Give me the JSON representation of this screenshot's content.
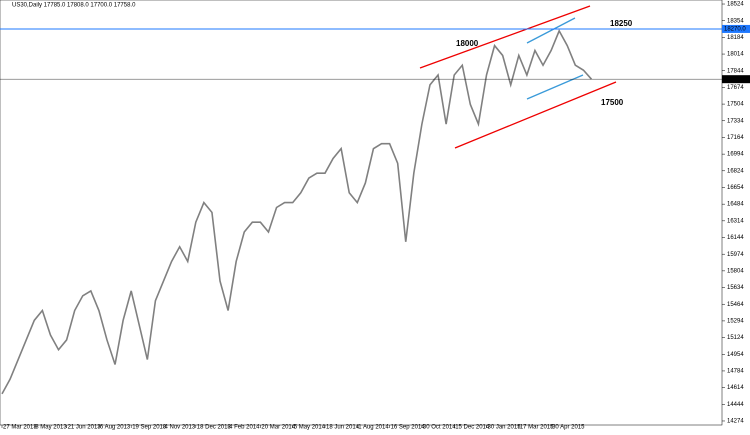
{
  "chart_data": {
    "type": "line",
    "title": "US30,Daily  17785.0 17808.0 17700.0 17758.0",
    "categories": [
      "27 Mar 2013",
      null,
      null,
      null,
      "8 May 2013",
      null,
      null,
      null,
      "21 Jun 2013",
      null,
      null,
      null,
      "6 Aug 2013",
      null,
      null,
      null,
      "19 Sep 2013",
      null,
      null,
      null,
      "4 Nov 2013",
      null,
      null,
      null,
      "18 Dec 2013",
      null,
      null,
      null,
      "4 Feb 2014",
      null,
      null,
      null,
      "20 Mar 2014",
      null,
      null,
      null,
      "5 May 2014",
      null,
      null,
      null,
      "18 Jun 2014",
      null,
      null,
      null,
      "1 Aug 2014",
      null,
      null,
      null,
      "16 Sep 2014",
      null,
      null,
      null,
      "30 Oct 2014",
      null,
      null,
      null,
      "15 Dec 2014",
      null,
      null,
      null,
      "30 Jan 2015",
      null,
      null,
      null,
      "17 Mar 2015",
      null,
      null,
      null,
      "30 Apr 2015",
      null,
      null,
      null,
      null,
      null
    ],
    "series": [
      {
        "name": "US30",
        "color": "#808080",
        "values": [
          14550,
          14700,
          14900,
          15100,
          15300,
          15400,
          15150,
          15000,
          15100,
          15400,
          15550,
          15600,
          15400,
          15100,
          14850,
          15300,
          15600,
          15250,
          14900,
          15500,
          15700,
          15900,
          16050,
          15900,
          16300,
          16500,
          16400,
          15700,
          15400,
          15900,
          16200,
          16300,
          16300,
          16200,
          16450,
          16500,
          16500,
          16600,
          16750,
          16800,
          16800,
          16950,
          17050,
          16600,
          16500,
          16700,
          17050,
          17100,
          17100,
          16900,
          16100,
          16800,
          17300,
          17700,
          17800,
          17300,
          17800,
          17900,
          17500,
          17300,
          17800,
          18100,
          18000,
          17700,
          18000,
          17800,
          18050,
          17900,
          18050,
          18250,
          18100,
          17900,
          17850,
          17758
        ]
      }
    ],
    "ylim": [
      14233,
      18565
    ],
    "yticks": [
      18524,
      18354,
      18184,
      18014,
      17844,
      17674,
      17504,
      17334,
      17164,
      16994,
      16824,
      16654,
      16484,
      16314,
      16144,
      15974,
      15804,
      15634,
      15464,
      15294,
      15124,
      14954,
      14784,
      14614,
      14444,
      14274
    ],
    "levels": [
      {
        "value": 18270,
        "label": "18270.0",
        "color": "#1e78ff"
      },
      {
        "value": 17758,
        "label": "17758.0",
        "color": "#000000"
      }
    ],
    "annotations": [
      "18250",
      "18000",
      "17500"
    ]
  }
}
